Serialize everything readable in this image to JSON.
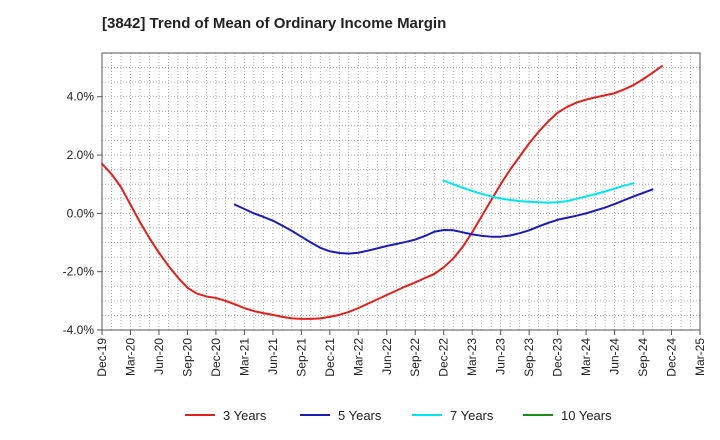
{
  "chart_data": {
    "type": "line",
    "title": "[3842]  Trend of Mean of Ordinary Income Margin",
    "xlabel": "",
    "ylabel": "",
    "ylim": [
      -4.0,
      5.5
    ],
    "yticks": [
      -4.0,
      -2.0,
      0.0,
      2.0,
      4.0
    ],
    "ytick_labels": [
      "-4.0%",
      "-2.0%",
      "0.0%",
      "2.0%",
      "4.0%"
    ],
    "xtick_labels": [
      "Dec-19",
      "Mar-20",
      "Jun-20",
      "Sep-20",
      "Dec-20",
      "Mar-21",
      "Jun-21",
      "Sep-21",
      "Dec-21",
      "Mar-22",
      "Jun-22",
      "Sep-22",
      "Dec-22",
      "Mar-23",
      "Jun-23",
      "Sep-23",
      "Dec-23",
      "Mar-24",
      "Jun-24",
      "Sep-24",
      "Dec-24",
      "Mar-25"
    ],
    "x_months_start": "2019-12",
    "grid": true,
    "legend_position": "bottom",
    "series": [
      {
        "name": "3 Years",
        "color": "#e0201c",
        "points": [
          [
            "2019-12",
            1.7
          ],
          [
            "2020-01",
            1.35
          ],
          [
            "2020-02",
            0.9
          ],
          [
            "2020-03",
            0.3
          ],
          [
            "2020-04",
            -0.3
          ],
          [
            "2020-05",
            -0.85
          ],
          [
            "2020-06",
            -1.35
          ],
          [
            "2020-07",
            -1.8
          ],
          [
            "2020-08",
            -2.2
          ],
          [
            "2020-09",
            -2.55
          ],
          [
            "2020-10",
            -2.75
          ],
          [
            "2020-11",
            -2.85
          ],
          [
            "2020-12",
            -2.9
          ],
          [
            "2021-01",
            -3.0
          ],
          [
            "2021-02",
            -3.12
          ],
          [
            "2021-03",
            -3.25
          ],
          [
            "2021-04",
            -3.35
          ],
          [
            "2021-05",
            -3.42
          ],
          [
            "2021-06",
            -3.48
          ],
          [
            "2021-07",
            -3.55
          ],
          [
            "2021-08",
            -3.6
          ],
          [
            "2021-09",
            -3.62
          ],
          [
            "2021-10",
            -3.62
          ],
          [
            "2021-11",
            -3.6
          ],
          [
            "2021-12",
            -3.55
          ],
          [
            "2022-01",
            -3.48
          ],
          [
            "2022-02",
            -3.38
          ],
          [
            "2022-03",
            -3.25
          ],
          [
            "2022-04",
            -3.1
          ],
          [
            "2022-05",
            -2.95
          ],
          [
            "2022-06",
            -2.8
          ],
          [
            "2022-07",
            -2.65
          ],
          [
            "2022-08",
            -2.5
          ],
          [
            "2022-09",
            -2.37
          ],
          [
            "2022-10",
            -2.22
          ],
          [
            "2022-11",
            -2.08
          ],
          [
            "2022-12",
            -1.85
          ],
          [
            "2023-01",
            -1.55
          ],
          [
            "2023-02",
            -1.15
          ],
          [
            "2023-03",
            -0.65
          ],
          [
            "2023-04",
            -0.1
          ],
          [
            "2023-05",
            0.45
          ],
          [
            "2023-06",
            1.0
          ],
          [
            "2023-07",
            1.5
          ],
          [
            "2023-08",
            1.95
          ],
          [
            "2023-09",
            2.4
          ],
          [
            "2023-10",
            2.8
          ],
          [
            "2023-11",
            3.15
          ],
          [
            "2023-12",
            3.45
          ],
          [
            "2024-01",
            3.65
          ],
          [
            "2024-02",
            3.8
          ],
          [
            "2024-03",
            3.9
          ],
          [
            "2024-04",
            3.98
          ],
          [
            "2024-05",
            4.05
          ],
          [
            "2024-06",
            4.12
          ],
          [
            "2024-07",
            4.25
          ],
          [
            "2024-08",
            4.4
          ],
          [
            "2024-09",
            4.6
          ],
          [
            "2024-10",
            4.82
          ],
          [
            "2024-11",
            5.05
          ]
        ]
      },
      {
        "name": "5 Years",
        "color": "#1c1cb4",
        "points": [
          [
            "2021-02",
            0.3
          ],
          [
            "2021-03",
            0.15
          ],
          [
            "2021-04",
            0.0
          ],
          [
            "2021-05",
            -0.12
          ],
          [
            "2021-06",
            -0.25
          ],
          [
            "2021-07",
            -0.42
          ],
          [
            "2021-08",
            -0.6
          ],
          [
            "2021-09",
            -0.8
          ],
          [
            "2021-10",
            -1.0
          ],
          [
            "2021-11",
            -1.18
          ],
          [
            "2021-12",
            -1.3
          ],
          [
            "2022-01",
            -1.36
          ],
          [
            "2022-02",
            -1.38
          ],
          [
            "2022-03",
            -1.35
          ],
          [
            "2022-04",
            -1.28
          ],
          [
            "2022-05",
            -1.2
          ],
          [
            "2022-06",
            -1.12
          ],
          [
            "2022-07",
            -1.05
          ],
          [
            "2022-08",
            -0.98
          ],
          [
            "2022-09",
            -0.9
          ],
          [
            "2022-10",
            -0.78
          ],
          [
            "2022-11",
            -0.63
          ],
          [
            "2022-12",
            -0.57
          ],
          [
            "2023-01",
            -0.58
          ],
          [
            "2023-02",
            -0.65
          ],
          [
            "2023-03",
            -0.72
          ],
          [
            "2023-04",
            -0.77
          ],
          [
            "2023-05",
            -0.8
          ],
          [
            "2023-06",
            -0.8
          ],
          [
            "2023-07",
            -0.76
          ],
          [
            "2023-08",
            -0.68
          ],
          [
            "2023-09",
            -0.58
          ],
          [
            "2023-10",
            -0.45
          ],
          [
            "2023-11",
            -0.33
          ],
          [
            "2023-12",
            -0.22
          ],
          [
            "2024-01",
            -0.15
          ],
          [
            "2024-02",
            -0.08
          ],
          [
            "2024-03",
            0.0
          ],
          [
            "2024-04",
            0.1
          ],
          [
            "2024-05",
            0.2
          ],
          [
            "2024-06",
            0.32
          ],
          [
            "2024-07",
            0.45
          ],
          [
            "2024-08",
            0.58
          ],
          [
            "2024-09",
            0.7
          ],
          [
            "2024-10",
            0.82
          ]
        ]
      },
      {
        "name": "7 Years",
        "color": "#00e5ee",
        "points": [
          [
            "2022-12",
            1.12
          ],
          [
            "2023-01",
            1.0
          ],
          [
            "2023-02",
            0.88
          ],
          [
            "2023-03",
            0.77
          ],
          [
            "2023-04",
            0.67
          ],
          [
            "2023-05",
            0.58
          ],
          [
            "2023-06",
            0.51
          ],
          [
            "2023-07",
            0.46
          ],
          [
            "2023-08",
            0.42
          ],
          [
            "2023-09",
            0.4
          ],
          [
            "2023-10",
            0.38
          ],
          [
            "2023-11",
            0.37
          ],
          [
            "2023-12",
            0.38
          ],
          [
            "2024-01",
            0.42
          ],
          [
            "2024-02",
            0.5
          ],
          [
            "2024-03",
            0.58
          ],
          [
            "2024-04",
            0.66
          ],
          [
            "2024-05",
            0.75
          ],
          [
            "2024-06",
            0.85
          ],
          [
            "2024-07",
            0.95
          ],
          [
            "2024-08",
            1.03
          ]
        ]
      },
      {
        "name": "10 Years",
        "color": "#1a8a1a",
        "points": []
      }
    ]
  }
}
